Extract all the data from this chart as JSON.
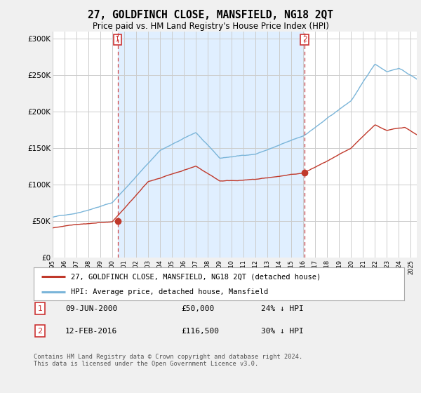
{
  "title": "27, GOLDFINCH CLOSE, MANSFIELD, NG18 2QT",
  "subtitle": "Price paid vs. HM Land Registry's House Price Index (HPI)",
  "hpi_label": "HPI: Average price, detached house, Mansfield",
  "price_label": "27, GOLDFINCH CLOSE, MANSFIELD, NG18 2QT (detached house)",
  "sale1_date": "09-JUN-2000",
  "sale1_price": "£50,000",
  "sale1_hpi": "24% ↓ HPI",
  "sale1_year": 2000.44,
  "sale1_value": 50000,
  "sale2_date": "12-FEB-2016",
  "sale2_price": "£116,500",
  "sale2_hpi": "30% ↓ HPI",
  "sale2_year": 2016.12,
  "sale2_value": 116500,
  "ylabel_ticks": [
    "£0",
    "£50K",
    "£100K",
    "£150K",
    "£200K",
    "£250K",
    "£300K"
  ],
  "ytick_values": [
    0,
    50000,
    100000,
    150000,
    200000,
    250000,
    300000
  ],
  "ylim": [
    0,
    310000
  ],
  "xlim_start": 1995,
  "xlim_end": 2025.5,
  "hpi_color": "#7ab5d9",
  "price_color": "#c0392b",
  "vline_color": "#cc3333",
  "shade_color": "#ddeeff",
  "background_color": "#f0f0f0",
  "plot_bg_color": "#ffffff",
  "grid_color": "#cccccc",
  "footer": "Contains HM Land Registry data © Crown copyright and database right 2024.\nThis data is licensed under the Open Government Licence v3.0.",
  "title_fontsize": 10.5,
  "subtitle_fontsize": 8.5,
  "tick_fontsize": 7.5,
  "legend_fontsize": 8
}
